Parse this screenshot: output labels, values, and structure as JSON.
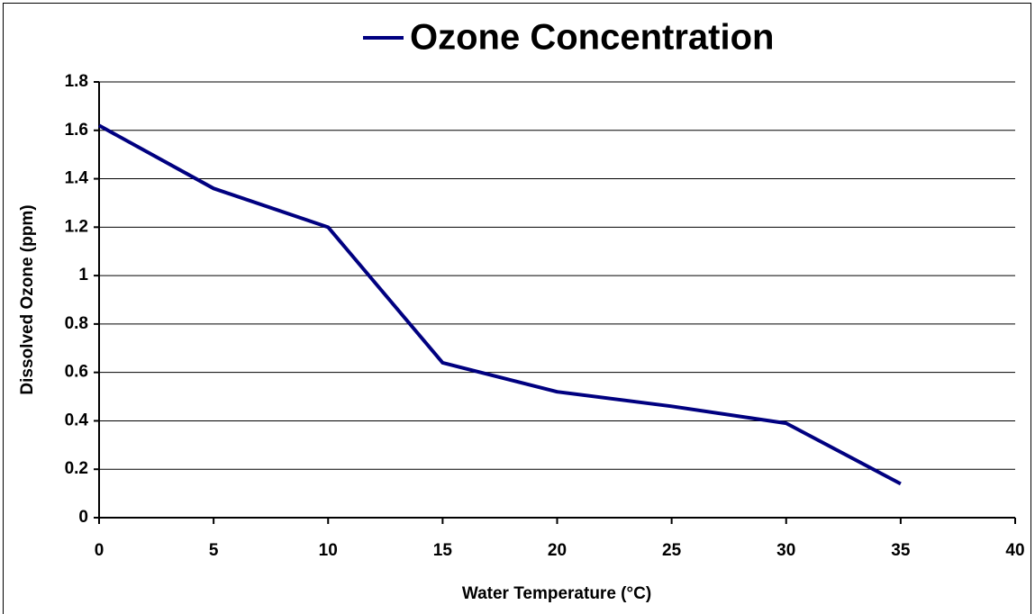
{
  "chart_data": {
    "type": "line",
    "x_label": "Water Temperature (°C)",
    "y_label": "Dissolved Ozone (ppm)",
    "x": [
      0,
      5,
      10,
      15,
      20,
      25,
      30,
      35
    ],
    "series": [
      {
        "name": "Ozone Concentration",
        "color": "#000080",
        "values": [
          1.62,
          1.36,
          1.2,
          0.64,
          0.52,
          0.46,
          0.39,
          0.14
        ]
      }
    ],
    "xlim": [
      0,
      40
    ],
    "xticks": [
      0,
      5,
      10,
      15,
      20,
      25,
      30,
      35,
      40
    ],
    "ylim": [
      0,
      1.8
    ],
    "yticks": [
      0,
      0.2,
      0.4,
      0.6,
      0.8,
      1,
      1.2,
      1.4,
      1.6,
      1.8
    ],
    "grid": true,
    "legend": "top"
  }
}
